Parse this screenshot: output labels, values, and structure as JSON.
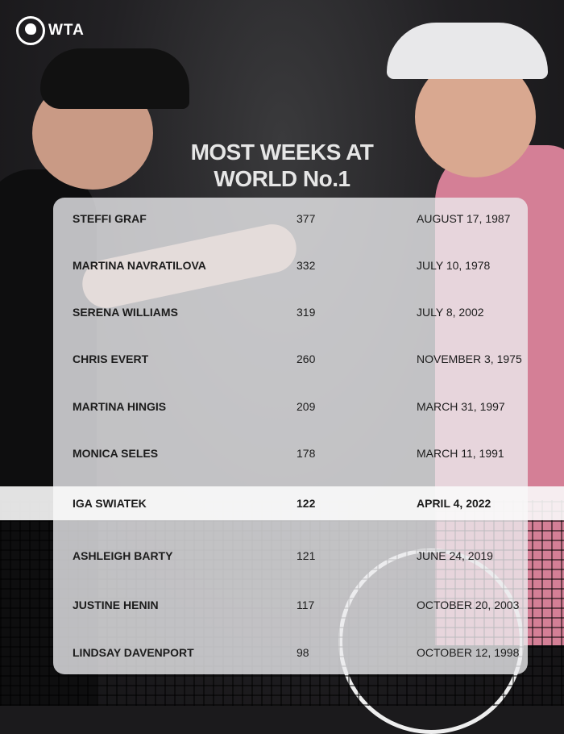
{
  "brand": {
    "logo_text": "WTA"
  },
  "title": {
    "line1": "MOST WEEKS AT",
    "line2": "WORLD No.1"
  },
  "highlight_color": "#ffffff",
  "table": {
    "rows": [
      {
        "name": "STEFFI GRAF",
        "weeks": "377",
        "first_date": "AUGUST 17, 1987"
      },
      {
        "name": "MARTINA NAVRATILOVA",
        "weeks": "332",
        "first_date": "JULY 10, 1978"
      },
      {
        "name": "SERENA WILLIAMS",
        "weeks": "319",
        "first_date": "JULY 8, 2002"
      },
      {
        "name": "CHRIS EVERT",
        "weeks": "260",
        "first_date": "NOVEMBER 3, 1975"
      },
      {
        "name": "MARTINA HINGIS",
        "weeks": "209",
        "first_date": "MARCH 31, 1997"
      },
      {
        "name": "MONICA SELES",
        "weeks": "178",
        "first_date": "MARCH 11, 1991"
      },
      {
        "name": "IGA SWIATEK",
        "weeks": "122",
        "first_date": "APRIL 4, 2022",
        "highlighted": true
      },
      {
        "name": "ASHLEIGH BARTY",
        "weeks": "121",
        "first_date": "JUNE 24, 2019"
      },
      {
        "name": "JUSTINE HENIN",
        "weeks": "117",
        "first_date": "OCTOBER 20, 2003"
      },
      {
        "name": "LINDSAY DAVENPORT",
        "weeks": "98",
        "first_date": "OCTOBER 12, 1998"
      }
    ]
  }
}
